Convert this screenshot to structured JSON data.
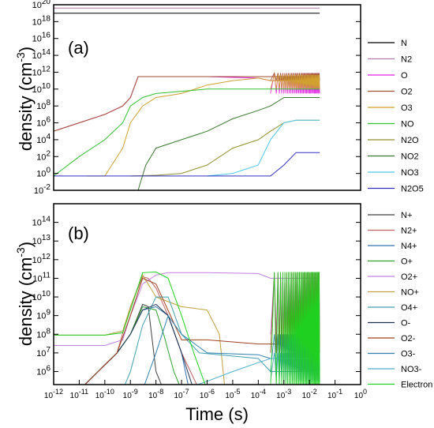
{
  "chart_data": [
    {
      "type": "line",
      "panel_label": "(a)",
      "ylabel": "density (cm",
      "ylabel_exp": "-3",
      "ylabel_close": ")",
      "x_scale": "log",
      "y_scale": "log",
      "xlim": [
        1e-12,
        1
      ],
      "ylim": [
        0.01,
        1e+20
      ],
      "y_tick_exponents": [
        -2,
        0,
        2,
        4,
        6,
        8,
        10,
        12,
        14,
        16,
        18,
        20
      ],
      "legend_position": "right",
      "series": [
        {
          "name": "N",
          "color": "#000000",
          "points": [
            [
              1e-12,
              1e+19
            ],
            [
              0.025,
              1e+19
            ]
          ]
        },
        {
          "name": "N2",
          "color": "#b07aa8",
          "points": [
            [
              1e-12,
              4e+19
            ],
            [
              0.025,
              4e+19
            ]
          ]
        },
        {
          "name": "O",
          "color": "#e020e0",
          "points": [
            [
              1e-12,
              100000.0
            ],
            [
              1e-11,
              1000000.0
            ],
            [
              1e-10,
              10000000.0
            ],
            [
              5e-10,
              100000000.0
            ],
            [
              1e-09,
              1000000000.0
            ],
            [
              2e-09,
              300000000000.0
            ],
            [
              1e-06,
              300000000000.0
            ],
            [
              0.0001,
              200000000000.0
            ],
            [
              0.0003,
              100000000000.0
            ],
            [
              0.025,
              100000000000.0
            ]
          ],
          "osc": [
            0.0003,
            0.025,
            3000000000.0,
            800000000000.0
          ]
        },
        {
          "name": "O2",
          "color": "#a05030",
          "points": [
            [
              1e-12,
              100000.0
            ],
            [
              1e-11,
              1000000.0
            ],
            [
              1e-10,
              10000000.0
            ],
            [
              5e-10,
              100000000.0
            ],
            [
              1e-09,
              1000000000.0
            ],
            [
              2e-09,
              300000000000.0
            ],
            [
              1e-06,
              300000000000.0
            ],
            [
              0.0003,
              300000000000.0
            ],
            [
              0.025,
              300000000000.0
            ]
          ],
          "osc": [
            0.0003,
            0.025,
            100000000000.0,
            800000000000.0
          ]
        },
        {
          "name": "O3",
          "color": "#d0a030",
          "points": [
            [
              2e-11,
              0.5
            ],
            [
              1e-10,
              0.5
            ],
            [
              5e-10,
              1000.0
            ],
            [
              1e-09,
              1000000.0
            ],
            [
              3e-09,
              100000000.0
            ],
            [
              1e-08,
              1000000000.0
            ],
            [
              1e-07,
              3000000000.0
            ],
            [
              1e-06,
              30000000000.0
            ],
            [
              1e-05,
              100000000000.0
            ],
            [
              0.0001,
              200000000000.0
            ],
            [
              0.0003,
              100000000000.0
            ],
            [
              0.025,
              100000000000.0
            ]
          ],
          "osc": [
            0.0003,
            0.025,
            10000000000.0,
            500000000000.0
          ]
        },
        {
          "name": "NO",
          "color": "#30c030",
          "points": [
            [
              1e-12,
              0.5
            ],
            [
              1e-11,
              100.0
            ],
            [
              1e-10,
              10000.0
            ],
            [
              5e-10,
              1000000.0
            ],
            [
              1e-09,
              100000000.0
            ],
            [
              3e-09,
              1000000000.0
            ],
            [
              1e-08,
              3000000000.0
            ],
            [
              1e-06,
              10000000000.0
            ],
            [
              0.0001,
              10000000000.0
            ],
            [
              0.025,
              10000000000.0
            ]
          ]
        },
        {
          "name": "N2O",
          "color": "#909030",
          "points": [
            [
              1e-09,
              0.5
            ],
            [
              1e-08,
              0.6
            ],
            [
              1e-07,
              1
            ],
            [
              1e-06,
              10
            ],
            [
              1e-05,
              1000.0
            ],
            [
              0.0001,
              10000.0
            ],
            [
              0.0003,
              100000.0
            ],
            [
              0.001,
              1000000.0
            ],
            [
              0.003,
              2000000.0
            ],
            [
              0.025,
              2000000.0
            ]
          ]
        },
        {
          "name": "NO2",
          "color": "#3a7a30",
          "points": [
            [
              2e-09,
              0.01
            ],
            [
              4e-09,
              10
            ],
            [
              1e-08,
              1000.0
            ],
            [
              1e-07,
              10000.0
            ],
            [
              1e-06,
              100000.0
            ],
            [
              1e-05,
              3000000.0
            ],
            [
              0.0001,
              30000000.0
            ],
            [
              0.0003,
              100000000.0
            ],
            [
              0.001,
              1000000000.0
            ],
            [
              0.025,
              1000000000.0
            ]
          ]
        },
        {
          "name": "NO3",
          "color": "#50c8e8",
          "points": [
            [
              1e-06,
              0.5
            ],
            [
              1e-05,
              1
            ],
            [
              0.0001,
              10
            ],
            [
              0.0003,
              10000.0
            ],
            [
              0.001,
              1000000.0
            ],
            [
              0.003,
              2000000.0
            ],
            [
              0.025,
              2000000.0
            ]
          ]
        },
        {
          "name": "N2O5",
          "color": "#3030c0",
          "points": [
            [
              1e-12,
              0.5
            ],
            [
              0.0003,
              0.5
            ],
            [
              0.001,
              10
            ],
            [
              0.003,
              300
            ],
            [
              0.025,
              300
            ]
          ]
        }
      ]
    },
    {
      "type": "line",
      "panel_label": "(b)",
      "xlabel": "Time (s)",
      "ylabel": "density (cm",
      "ylabel_exp": "-3",
      "ylabel_close": ")",
      "x_scale": "log",
      "y_scale": "log",
      "xlim": [
        1e-12,
        1
      ],
      "ylim": [
        200000,
        1000000000000000.0
      ],
      "x_tick_exponents": [
        -12,
        -11,
        -10,
        -9,
        -8,
        -7,
        -6,
        -5,
        -4,
        -3,
        -2,
        -1,
        0
      ],
      "y_tick_exponents": [
        6,
        7,
        8,
        9,
        10,
        11,
        12,
        13,
        14
      ],
      "legend_position": "right",
      "series": [
        {
          "name": "N+",
          "color": "#404040",
          "points": [
            [
              1e-11,
              100000.0
            ],
            [
              3e-10,
              10000000.0
            ],
            [
              1e-09,
              100000000.0
            ],
            [
              2e-09,
              1000000000.0
            ],
            [
              3e-09,
              4000000000.0
            ],
            [
              5e-09,
              3000000000.0
            ],
            [
              1e-08,
              1000000.0
            ],
            [
              2e-08,
              100000.0
            ]
          ]
        },
        {
          "name": "N2+",
          "color": "#c06060",
          "points": [
            [
              1e-11,
              100000.0
            ],
            [
              3e-10,
              10000000.0
            ],
            [
              1e-09,
              3000000000.0
            ],
            [
              3e-09,
              120000000000.0
            ],
            [
              5e-09,
              100000000000.0
            ],
            [
              1e-08,
              30000000000.0
            ],
            [
              3e-08,
              1000000000.0
            ],
            [
              1e-07,
              10000000.0
            ],
            [
              5e-07,
              100000.0
            ]
          ]
        },
        {
          "name": "N4+",
          "color": "#3070b0",
          "points": [
            [
              1e-11,
              100000.0
            ],
            [
              3e-10,
              10000000.0
            ],
            [
              1e-09,
              100000000.0
            ],
            [
              3e-09,
              2000000000.0
            ],
            [
              1e-08,
              3000000000.0
            ],
            [
              3e-08,
              1000000000.0
            ],
            [
              1e-07,
              10000000.0
            ],
            [
              2e-07,
              100000.0
            ]
          ]
        },
        {
          "name": "O+",
          "color": "#30a030",
          "points": [
            [
              1e-11,
              100000.0
            ],
            [
              3e-10,
              10000000.0
            ],
            [
              1e-09,
              100000000.0
            ],
            [
              3e-09,
              3000000000.0
            ],
            [
              1e-08,
              2000000000.0
            ],
            [
              2e-08,
              100000000.0
            ],
            [
              5e-08,
              1000000.0
            ],
            [
              1e-07,
              100000.0
            ]
          ]
        },
        {
          "name": "O2+",
          "color": "#c080e0",
          "points": [
            [
              1e-12,
              25000000.0
            ],
            [
              1e-10,
              25000000.0
            ],
            [
              5e-10,
              50000000.0
            ],
            [
              1e-09,
              1000000000.0
            ],
            [
              3e-09,
              50000000000.0
            ],
            [
              1e-08,
              150000000000.0
            ],
            [
              3e-08,
              200000000000.0
            ],
            [
              1e-06,
              200000000000.0
            ],
            [
              0.0001,
              180000000000.0
            ],
            [
              0.0003,
              100000000000.0
            ],
            [
              0.025,
              100000000000.0
            ]
          ],
          "osc": [
            0.0003,
            0.025,
            100000000.0,
            200000000000.0
          ]
        },
        {
          "name": "NO+",
          "color": "#c0a040",
          "points": [
            [
              1e-12,
              90000000.0
            ],
            [
              1e-10,
              90000000.0
            ],
            [
              5e-10,
              150000000.0
            ],
            [
              1e-09,
              3000000000.0
            ],
            [
              3e-09,
              150000000000.0
            ],
            [
              1e-08,
              10000000000.0
            ],
            [
              1e-07,
              3000000000.0
            ],
            [
              1e-06,
              2000000000.0
            ],
            [
              3e-06,
              100000000.0
            ],
            [
              5e-06,
              100000.0
            ]
          ]
        },
        {
          "name": "O4+",
          "color": "#40a0b0",
          "points": [
            [
              5e-10,
              100000.0
            ],
            [
              1e-09,
              1000000.0
            ],
            [
              3e-09,
              300000000.0
            ],
            [
              1e-08,
              10000000000.0
            ],
            [
              3e-08,
              10000000000.0
            ],
            [
              1e-07,
              100000000.0
            ],
            [
              5e-07,
              10000000.0
            ],
            [
              0.0001,
              5000000.0
            ],
            [
              0.0003,
              1000000.0
            ],
            [
              0.025,
              1000000.0
            ]
          ],
          "osc": [
            0.0003,
            0.025,
            300000.0,
            10000000.0
          ]
        },
        {
          "name": "O-",
          "color": "#203050",
          "points": [
            [
              1e-11,
              100000.0
            ],
            [
              3e-10,
              10000000.0
            ],
            [
              1e-09,
              100000000.0
            ],
            [
              3e-09,
              2000000000.0
            ],
            [
              1e-08,
              4000000000.0
            ],
            [
              3e-08,
              1000000000.0
            ],
            [
              1e-07,
              10000000.0
            ],
            [
              3e-07,
              100000.0
            ]
          ]
        },
        {
          "name": "O2-",
          "color": "#a04020",
          "points": [
            [
              1e-11,
              100000.0
            ],
            [
              3e-10,
              10000000.0
            ],
            [
              1e-09,
              1000000000.0
            ],
            [
              3e-09,
              100000000000.0
            ],
            [
              1e-08,
              50000000000.0
            ],
            [
              1e-07,
              50000000.0
            ],
            [
              1e-06,
              50000000.0
            ],
            [
              0.0001,
              30000000.0
            ],
            [
              0.0003,
              30000000.0
            ],
            [
              0.025,
              30000000.0
            ]
          ],
          "osc": [
            0.0003,
            0.025,
            10000000.0,
            200000000000.0
          ]
        },
        {
          "name": "O3-",
          "color": "#3080b0",
          "points": [
            [
              3e-09,
              100000.0
            ],
            [
              1e-08,
              10000000.0
            ],
            [
              3e-08,
              1000000000.0
            ],
            [
              1e-07,
              100000000.0
            ],
            [
              1e-06,
              10000000.0
            ],
            [
              0.0001,
              8000000.0
            ],
            [
              0.0003,
              5000000.0
            ],
            [
              0.025,
              5000000.0
            ]
          ],
          "osc": [
            0.0003,
            0.025,
            1000000.0,
            100000000.0
          ]
        },
        {
          "name": "NO3-",
          "color": "#50b0d0",
          "points": [
            [
              1e-07,
              100000.0
            ],
            [
              1e-06,
              300000.0
            ],
            [
              1e-05,
              1000000.0
            ],
            [
              0.0001,
              3000000.0
            ],
            [
              0.0003,
              5000000.0
            ],
            [
              0.025,
              5000000.0
            ]
          ]
        },
        {
          "name": "Electron",
          "color": "#20d020",
          "points": [
            [
              1e-12,
              90000000.0
            ],
            [
              1e-10,
              90000000.0
            ],
            [
              5e-10,
              120000000.0
            ],
            [
              1e-09,
              2000000000.0
            ],
            [
              3e-09,
              200000000000.0
            ],
            [
              1e-08,
              220000000000.0
            ],
            [
              3e-08,
              100000000000.0
            ],
            [
              1e-07,
              1000000000.0
            ],
            [
              3e-07,
              10000000.0
            ],
            [
              1e-06,
              100000.0
            ]
          ],
          "osc": [
            0.0003,
            0.025,
            100000.0,
            220000000000.0
          ]
        }
      ]
    }
  ]
}
